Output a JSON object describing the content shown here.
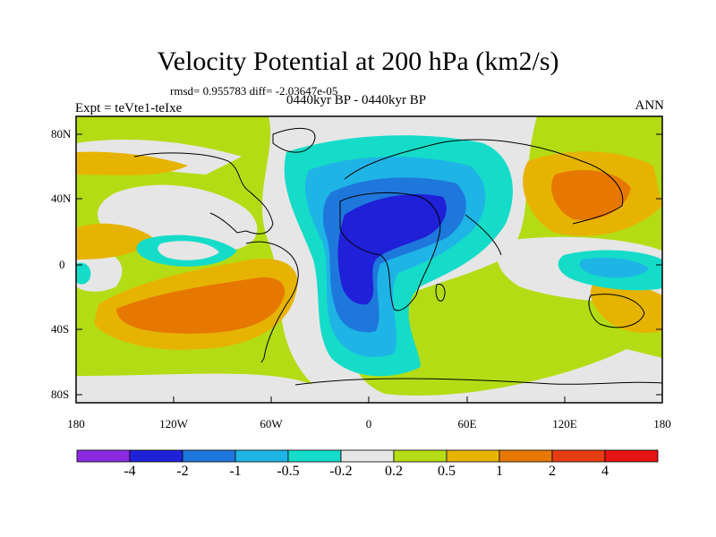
{
  "title": "Velocity Potential at 200 hPa (km2/s)",
  "stats": "rmsd= 0.955783  diff= -2.03647e-05",
  "experiment": "Expt = teVte1-teIxe",
  "period": "0440kyr BP - 0440kyr BP",
  "season": "ANN",
  "lat_ticks": [
    "80N",
    "40N",
    "0",
    "40S",
    "80S"
  ],
  "lon_ticks": [
    "180",
    "120W",
    "60W",
    "0",
    "60E",
    "120E",
    "180"
  ],
  "colorbar": {
    "labels": [
      "-4",
      "-2",
      "-1",
      "-0.5",
      "-0.2",
      "0.2",
      "0.5",
      "1",
      "2",
      "4"
    ],
    "colors": [
      "#8a2be2",
      "#2020d8",
      "#1e78dc",
      "#1eb4e6",
      "#14dcc8",
      "#e6e6e6",
      "#b4dc14",
      "#e6b400",
      "#e67800",
      "#e63c14",
      "#e61414"
    ]
  }
}
